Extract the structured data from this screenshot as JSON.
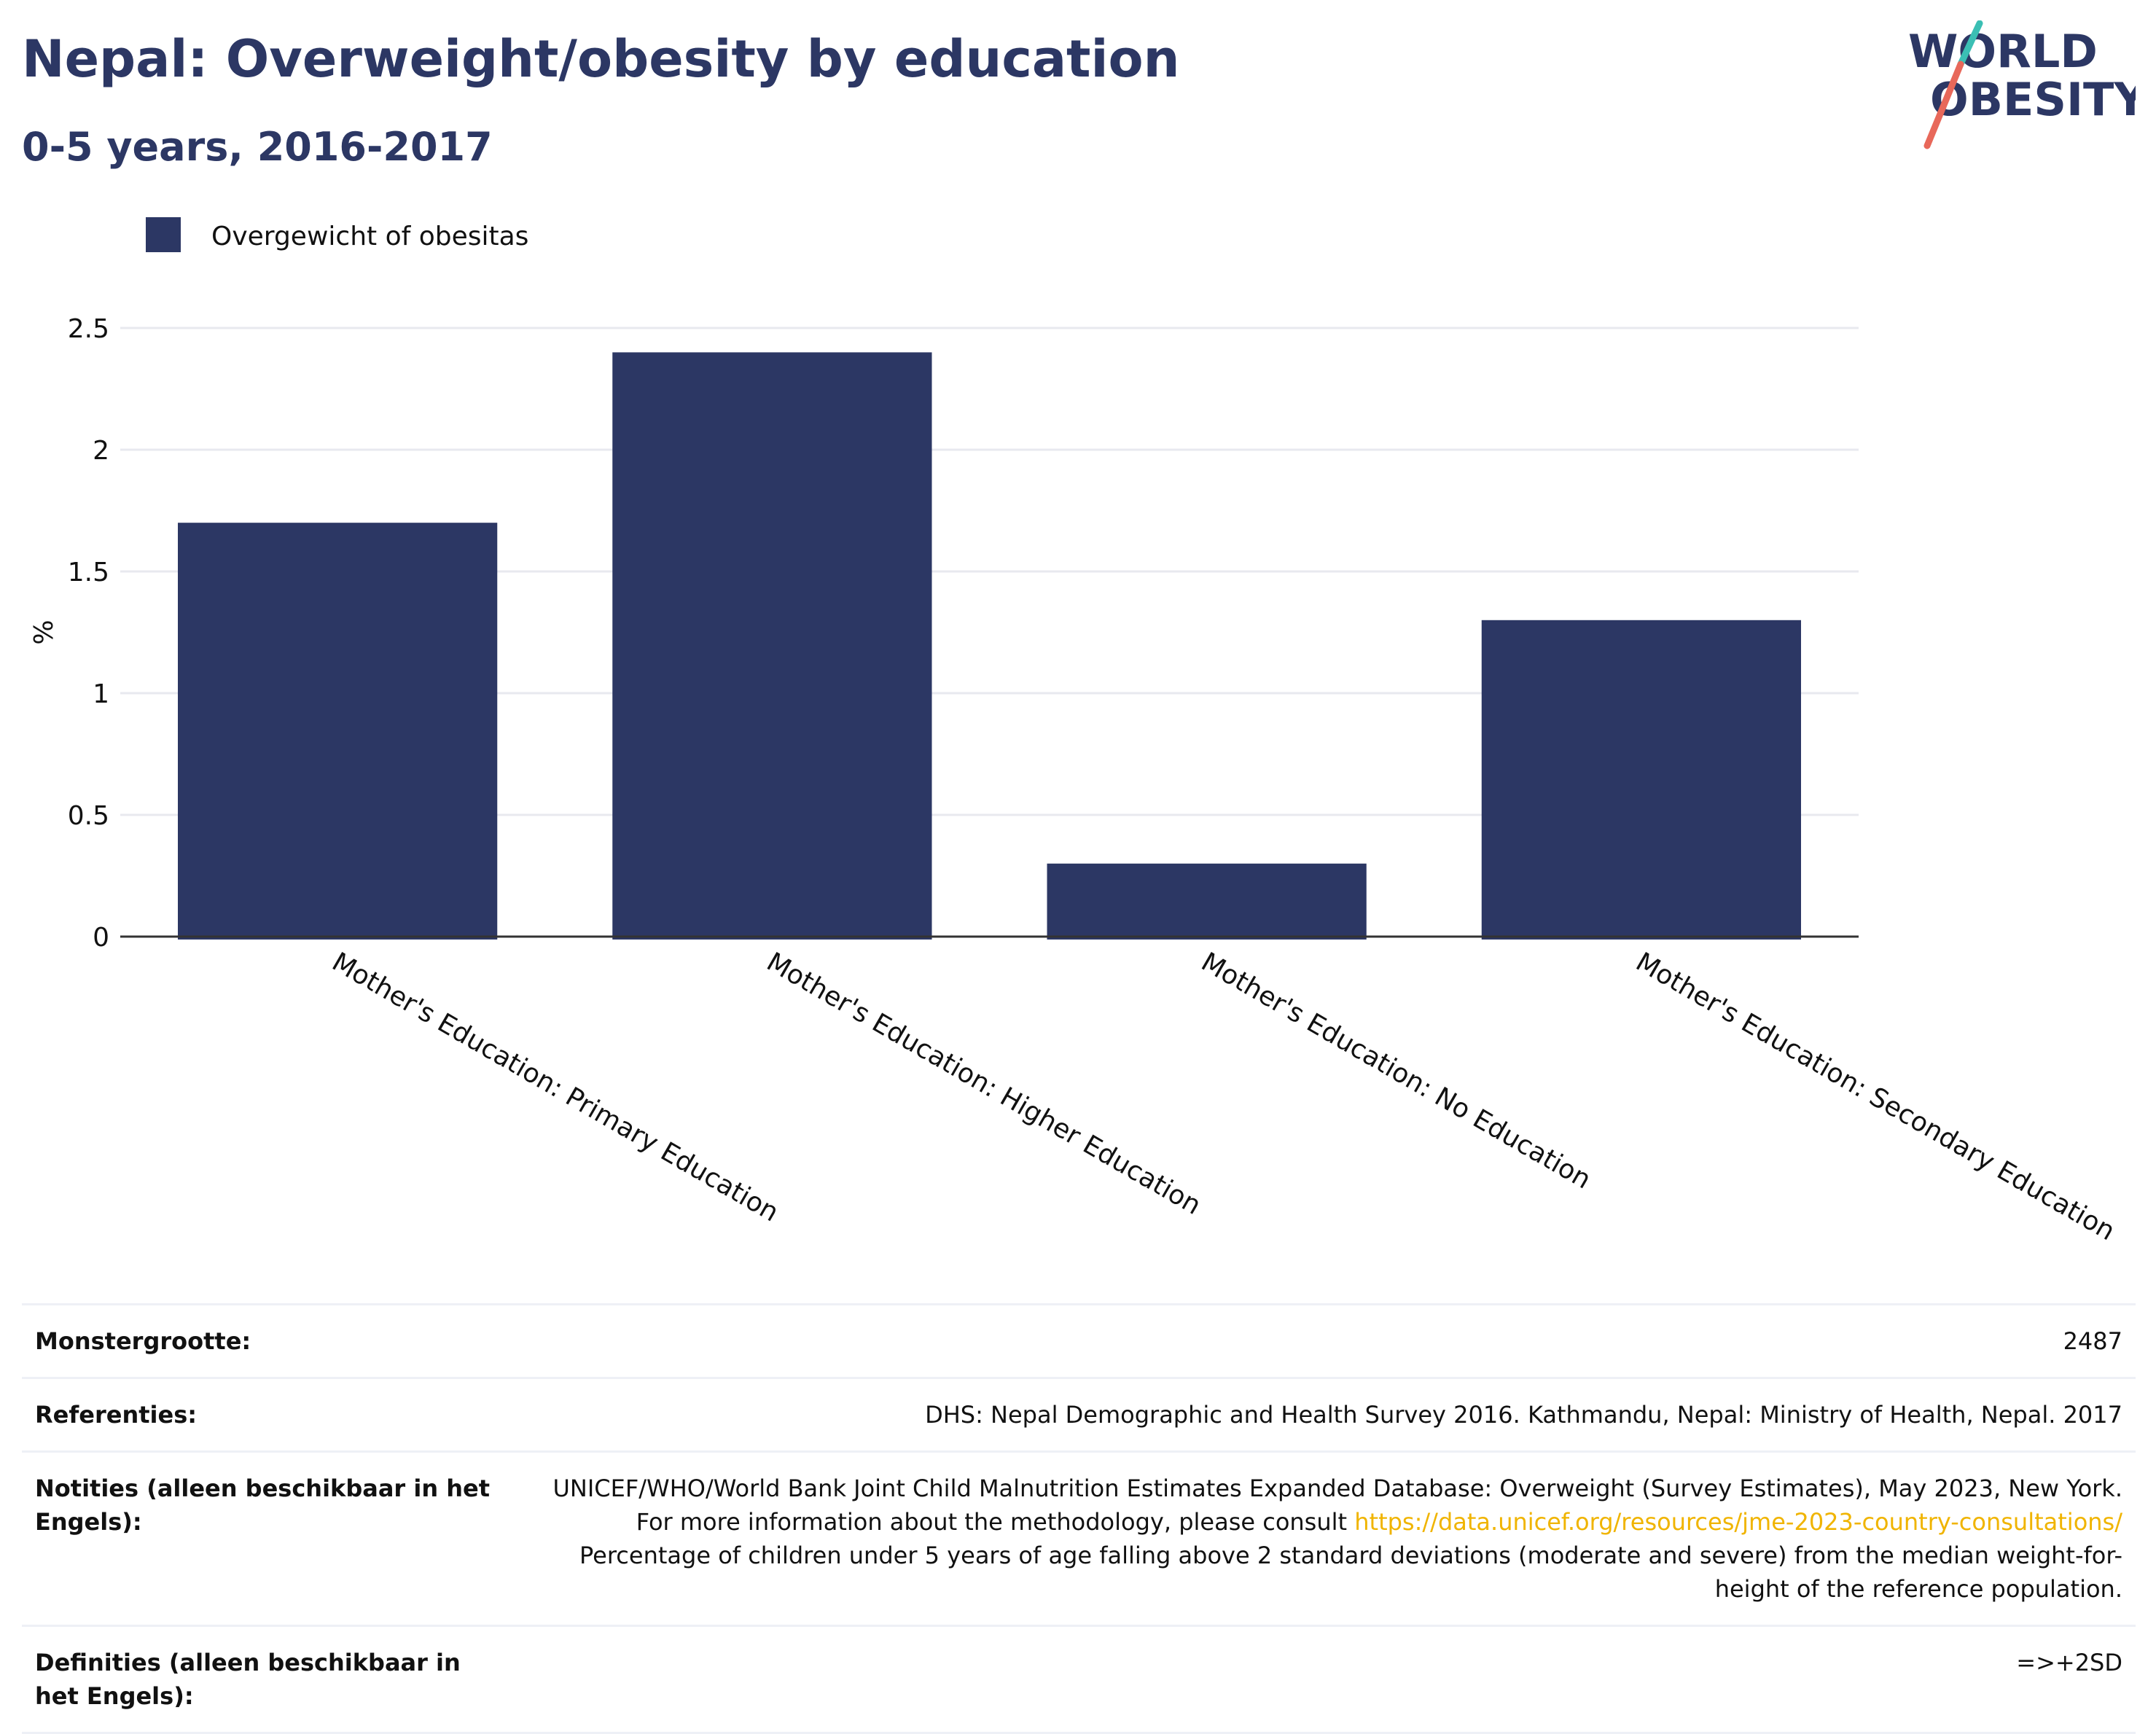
{
  "header": {
    "title": "Nepal: Overweight/obesity by education",
    "subtitle": "0-5 years, 2016-2017",
    "logo_line1": "WORLD",
    "logo_line2": "OBESITY"
  },
  "colors": {
    "bar": "#2c3764",
    "title": "#2c3764",
    "grid": "#e8e9ef",
    "axis": "#333333",
    "link": "#f0b400",
    "logo_teal": "#3bbfb4",
    "logo_red": "#e8685a"
  },
  "chart_data": {
    "type": "bar",
    "categories": [
      "Mother's Education: Primary Education",
      "Mother's Education: Higher Education",
      "Mother's Education: No Education",
      "Mother's Education: Secondary Education"
    ],
    "series": [
      {
        "name": "Overgewicht of obesitas",
        "values": [
          1.7,
          2.4,
          0.3,
          1.3
        ]
      }
    ],
    "ylabel": "%",
    "ylim": [
      0,
      2.5
    ],
    "yticks": [
      0,
      0.5,
      1,
      1.5,
      2,
      2.5
    ],
    "ytick_labels": [
      "0",
      "0.5",
      "1",
      "1.5",
      "2",
      "2.5"
    ],
    "grid": true,
    "legend": "top-left"
  },
  "meta": {
    "rows": [
      {
        "label": "Monstergrootte:",
        "value": "2487"
      },
      {
        "label": "Referenties:",
        "value": "DHS: Nepal Demographic and Health Survey 2016. Kathmandu, Nepal: Ministry of Health, Nepal. 2017"
      },
      {
        "label": "Notities (alleen beschikbaar in het Engels):",
        "value_pre": "UNICEF/WHO/World Bank Joint Child Malnutrition Estimates Expanded Database: Overweight (Survey Estimates), May 2023, New York. For more information about the methodology, please consult ",
        "link": "https://data.unicef.org/resources/jme-2023-country-consultations/",
        "value_post": " Percentage of children under 5 years of age falling above 2 standard deviations (moderate and severe) from the median weight-for-height of the reference population."
      },
      {
        "label": "Definities (alleen beschikbaar in het Engels):",
        "value": "=>+2SD"
      }
    ]
  }
}
